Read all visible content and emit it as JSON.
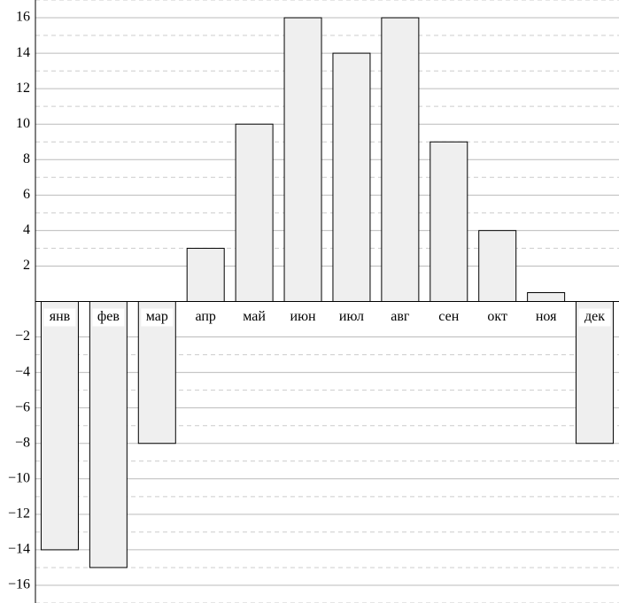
{
  "chart_data": {
    "type": "bar",
    "categories": [
      "янв",
      "фев",
      "мар",
      "апр",
      "май",
      "июн",
      "июл",
      "авг",
      "сен",
      "окт",
      "ноя",
      "дек"
    ],
    "values": [
      -14,
      -15,
      -8,
      3,
      10,
      16,
      14,
      16,
      9,
      4,
      0.5,
      -8
    ],
    "color": "#efefef",
    "ylim": [
      -17,
      17
    ],
    "yticks": [
      2,
      4,
      6,
      8,
      10,
      12,
      14,
      16,
      {
        "value": -2,
        "label": "−2"
      },
      {
        "value": -4,
        "label": "−4"
      },
      {
        "value": -6,
        "label": "−6"
      },
      {
        "value": -8,
        "label": "−8"
      },
      {
        "value": -10,
        "label": "−10"
      },
      {
        "value": -12,
        "label": "−12"
      },
      {
        "value": -14,
        "label": "−14"
      },
      {
        "value": -16,
        "label": "−16"
      }
    ],
    "grid": true
  }
}
